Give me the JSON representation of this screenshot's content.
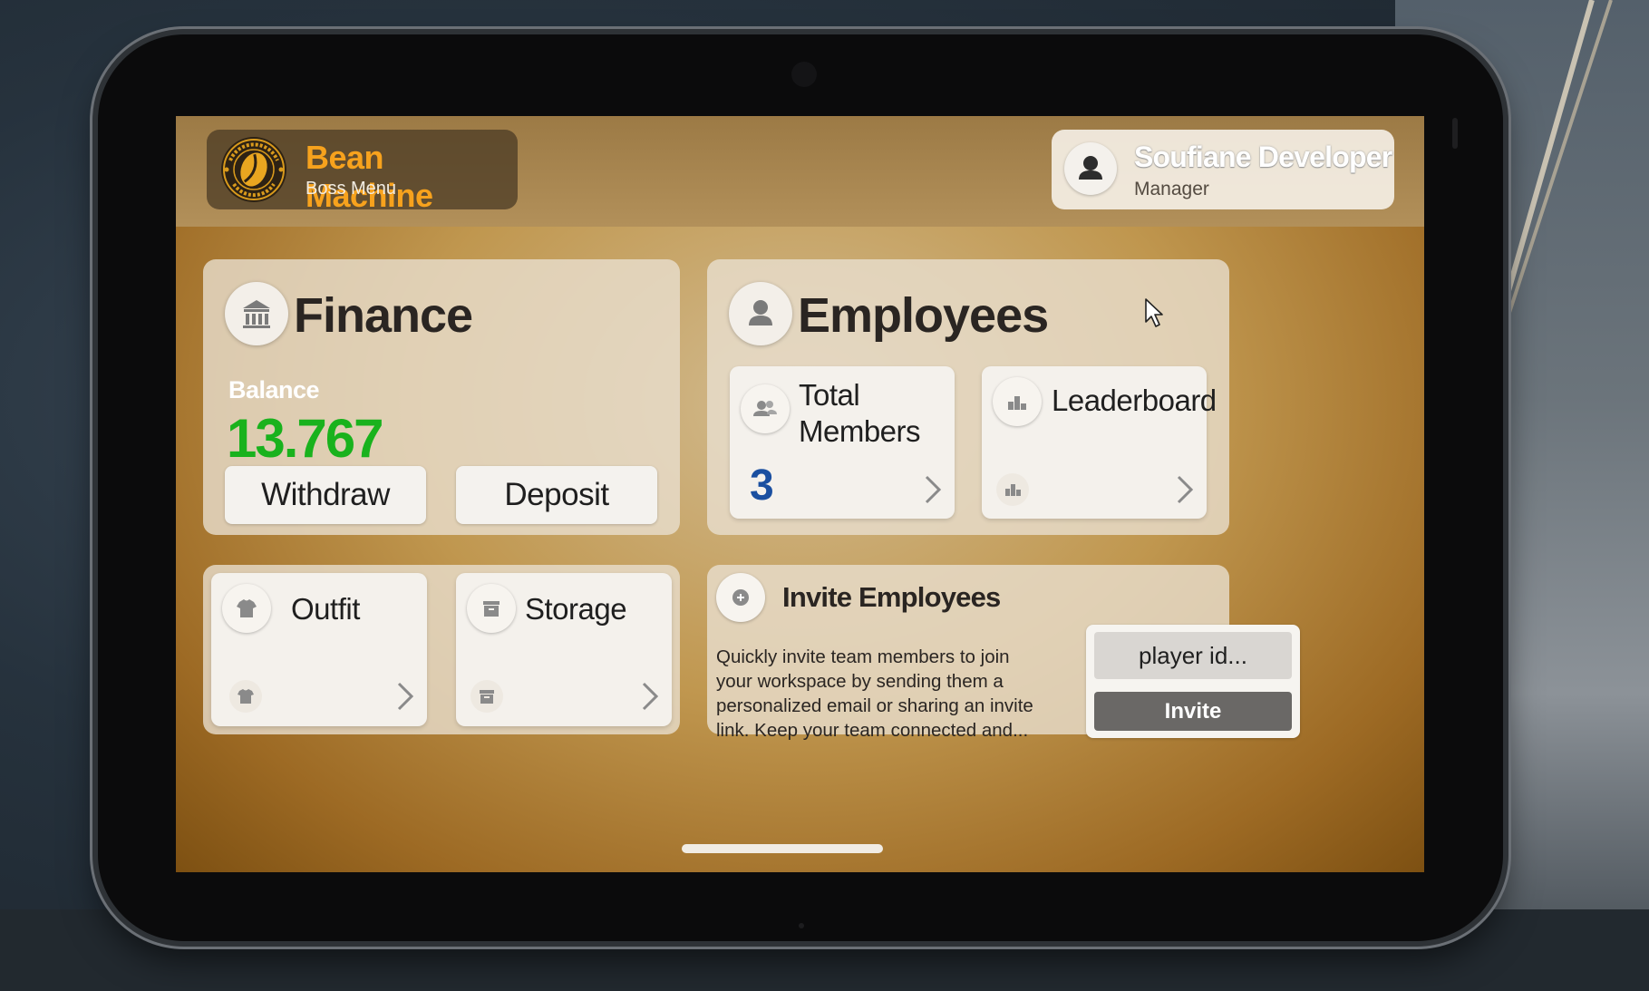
{
  "app": {
    "brand_name": "Bean Machine",
    "brand_subtitle": "Boss Menu",
    "logo_icon": "coffee-bean-logo",
    "accent_color": "#f7a21d"
  },
  "user": {
    "name": "Soufiane Developer",
    "role": "Manager",
    "icon": "user-avatar-icon"
  },
  "finance": {
    "title": "Finance",
    "icon": "bank-icon",
    "balance_label": "Balance",
    "balance_value": "13.767",
    "balance_color": "#19b21d",
    "withdraw_label": "Withdraw",
    "deposit_label": "Deposit"
  },
  "employees": {
    "title": "Employees",
    "icon": "person-icon",
    "total_members": {
      "label_line1": "Total",
      "label_line2": "Members",
      "value": "3",
      "icon": "group-icon",
      "value_color": "#1a4fa0"
    },
    "leaderboard": {
      "label": "Leaderboard",
      "icon": "podium-icon"
    }
  },
  "outfit": {
    "label": "Outfit",
    "icon": "shirt-icon"
  },
  "storage": {
    "label": "Storage",
    "icon": "archive-box-icon"
  },
  "invite": {
    "title": "Invite Employees",
    "icon": "plus-circle-icon",
    "description": "Quickly invite team members to join your workspace by sending them a personalized email or sharing an invite link. Keep your team connected and...",
    "input_placeholder": "player id...",
    "input_value": "",
    "button_label": "Invite"
  }
}
